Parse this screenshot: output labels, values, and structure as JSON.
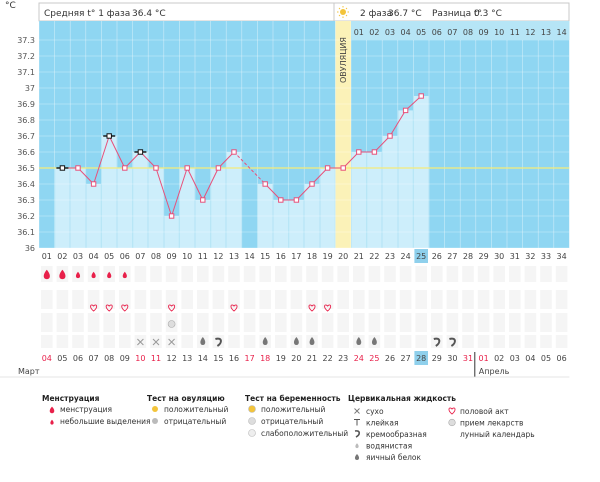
{
  "header": {
    "unit": "°C",
    "phase1": "Средняя t° 1 фаза",
    "phase1_value": "36.4 °C",
    "phase2": "2 фаза",
    "phase2_value": "36.7 °C",
    "diff": "Разница t°",
    "diff_value": "0.3 °C",
    "ovulation_label": "ОВУЛЯЦИЯ"
  },
  "colors": {
    "sky": "#8fd6f2",
    "bar": "#cdeefb",
    "line": "#e8507a",
    "cover": "#f5ec7a",
    "ovulation": "#fbf2b8",
    "highlight": "#8fd0ec",
    "accent_red": "#e8204a"
  },
  "chart_data": {
    "type": "line",
    "xlabel": "",
    "ylabel": "°C",
    "ylim": [
      36.0,
      37.35
    ],
    "yticks": [
      "36",
      "36.1",
      "36.2",
      "36.3",
      "36.4",
      "36.5",
      "36.6",
      "36.7",
      "36.8",
      "36.9",
      "37",
      "37.1",
      "37.2",
      "37.3"
    ],
    "coverline": 36.5,
    "cycle_days": [
      "01",
      "02",
      "03",
      "04",
      "05",
      "06",
      "07",
      "08",
      "09",
      "10",
      "11",
      "12",
      "13",
      "14",
      "15",
      "16",
      "17",
      "18",
      "19",
      "20",
      "21",
      "22",
      "23",
      "24",
      "25",
      "26",
      "27",
      "28",
      "29",
      "30",
      "31",
      "32",
      "33",
      "34"
    ],
    "temperatures": [
      null,
      36.5,
      36.5,
      36.4,
      36.7,
      36.5,
      36.6,
      36.5,
      36.2,
      36.5,
      36.3,
      36.5,
      36.6,
      null,
      36.4,
      36.3,
      36.3,
      36.4,
      36.5,
      36.5,
      36.6,
      36.6,
      36.7,
      36.86,
      36.95,
      null,
      null,
      null,
      null,
      null,
      null,
      null,
      null,
      null
    ],
    "ovulation_day": 20,
    "current_day": 25,
    "phase2_day_numbers": [
      "01",
      "02",
      "03",
      "04",
      "05",
      "06",
      "07",
      "08",
      "09",
      "10",
      "11",
      "12",
      "13",
      "14"
    ],
    "dates": [
      "04",
      "05",
      "06",
      "07",
      "08",
      "09",
      "10",
      "11",
      "12",
      "13",
      "14",
      "15",
      "16",
      "17",
      "18",
      "19",
      "20",
      "21",
      "22",
      "23",
      "24",
      "25",
      "26",
      "27",
      "28",
      "29",
      "30",
      "31",
      "01",
      "02",
      "03",
      "04",
      "05",
      "06"
    ],
    "date_red": [
      true,
      false,
      false,
      false,
      false,
      false,
      true,
      true,
      false,
      false,
      false,
      false,
      false,
      true,
      true,
      false,
      false,
      false,
      false,
      false,
      true,
      true,
      false,
      false,
      false,
      false,
      false,
      true,
      true,
      false,
      false,
      false,
      false,
      false
    ],
    "months": [
      "Март",
      "Апрель"
    ],
    "menstruation": [
      3,
      3,
      1,
      1,
      1,
      1,
      0,
      0,
      0,
      0,
      0,
      0,
      0,
      0,
      0,
      0,
      0,
      0,
      0,
      0,
      0,
      0,
      0,
      0,
      0,
      0,
      0,
      0,
      0,
      0,
      0,
      0,
      0,
      0
    ],
    "intercourse_days": [
      4,
      5,
      6,
      9,
      13,
      18,
      19
    ],
    "pill_days": [
      9
    ],
    "fluid_x_days": [
      7,
      8,
      9
    ],
    "fluid_egg_days": [
      11,
      15,
      17,
      18,
      21,
      22
    ],
    "fluid_cream_days": [
      12,
      26,
      27
    ],
    "fluid_watery_days": [
      26
    ],
    "fluid_sticky_days": [
      25
    ],
    "fluid_dry_days": [],
    "ovulation_test_days": [],
    "pregnancy_test_days": []
  },
  "legend": {
    "menstruation": {
      "title": "Менструация",
      "items": [
        "менструация",
        "небольшие выделения"
      ]
    },
    "ovulation_test": {
      "title": "Тест на овуляцию",
      "items": [
        "положительный",
        "отрицательный"
      ]
    },
    "pregnancy_test": {
      "title": "Тест на беременность",
      "items": [
        "положительный",
        "отрицательный",
        "слабоположительный"
      ]
    },
    "cervical": {
      "title": "Цервикальная жидкость",
      "items": [
        "сухо",
        "клейкая",
        "кремообразная",
        "водянистая",
        "яичный белок"
      ]
    },
    "other": {
      "items": [
        "половой акт",
        "прием лекарств",
        "лунный календарь"
      ]
    }
  }
}
